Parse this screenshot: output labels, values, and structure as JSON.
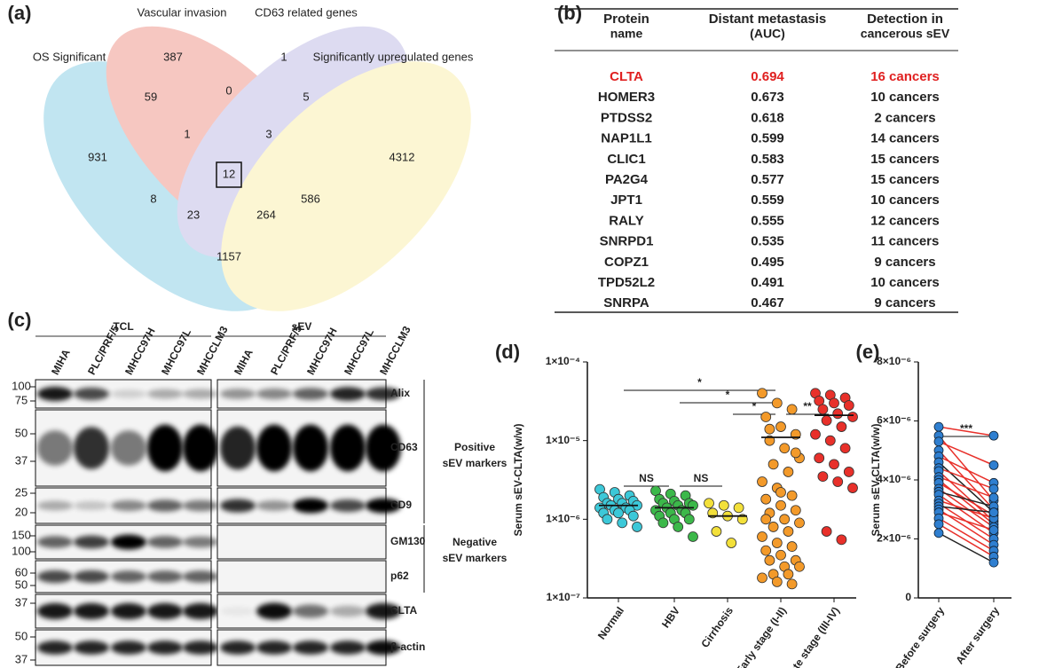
{
  "venn": {
    "panel_label": "(a)",
    "sets": [
      "Vascular invasion",
      "CD63 related genes",
      "OS Significant",
      "Significantly upregulated genes"
    ],
    "counts": [
      "387",
      "1",
      "59",
      "0",
      "5",
      "931",
      "1",
      "3",
      "4312",
      "12",
      "8",
      "23",
      "264",
      "586",
      "1157"
    ]
  },
  "table": {
    "panel_label": "(b)",
    "header": [
      [
        "Protein",
        "name"
      ],
      [
        "Distant metastasis",
        "(AUC)"
      ],
      [
        "Detection in",
        "cancerous sEV"
      ]
    ],
    "rows": [
      [
        "CLTA",
        "0.694",
        "16 cancers"
      ],
      [
        "HOMER3",
        "0.673",
        "10 cancers"
      ],
      [
        "PTDSS2",
        "0.618",
        "2 cancers"
      ],
      [
        "NAP1L1",
        "0.599",
        "14 cancers"
      ],
      [
        "CLIC1",
        "0.583",
        "15 cancers"
      ],
      [
        "PA2G4",
        "0.577",
        "15 cancers"
      ],
      [
        "JPT1",
        "0.559",
        "10 cancers"
      ],
      [
        "RALY",
        "0.555",
        "12 cancers"
      ],
      [
        "SNRPD1",
        "0.535",
        "11 cancers"
      ],
      [
        "COPZ1",
        "0.495",
        "9 cancers"
      ],
      [
        "TPD52L2",
        "0.491",
        "10 cancers"
      ],
      [
        "SNRPA",
        "0.467",
        "9 cancers"
      ]
    ]
  },
  "blot": {
    "panel_label": "(c)",
    "groups": [
      "TCL",
      "sEV"
    ],
    "lanes": [
      "MIHA",
      "PLC/PRF/5",
      "MHCC97H",
      "MHCC97L",
      "MHCCLM3"
    ],
    "rows": [
      {
        "marker": "Alix",
        "mw": [
          "100",
          "75"
        ]
      },
      {
        "marker": "CD63",
        "mw": [
          "50",
          "37"
        ]
      },
      {
        "marker": "CD9",
        "mw": [
          "25",
          "20"
        ]
      },
      {
        "marker": "GM130",
        "mw": [
          "150",
          "100"
        ]
      },
      {
        "marker": "p62",
        "mw": [
          "60",
          "50"
        ]
      },
      {
        "marker": "CLTA",
        "mw": [
          "37"
        ]
      },
      {
        "marker": "β-actin",
        "mw": [
          "50",
          "37"
        ]
      }
    ],
    "classes": [
      [
        "Positive",
        "sEV markers"
      ],
      [
        "Negative",
        "sEV markers"
      ]
    ]
  },
  "chart_data": [
    {
      "type": "scatter",
      "panel_label": "(d)",
      "y_label": "Serum sEV-CLTA(w/w)",
      "log_y": true,
      "categories": [
        "Normal",
        "HBV",
        "Cirrhosis",
        "Early stage (I-II)",
        "Late stage (III-IV)"
      ],
      "colors": [
        "#3cc8d8",
        "#3cb84a",
        "#f3e03a",
        "#f39a2a",
        "#e8302a"
      ],
      "values": [
        [
          2.4e-06,
          2.2e-06,
          2e-06,
          1.9e-06,
          1.8e-06,
          1.7e-06,
          1.6e-06,
          1.6e-06,
          1.5e-06,
          1.5e-06,
          1.4e-06,
          1.4e-06,
          1.3e-06,
          1.3e-06,
          1.2e-06,
          1.2e-06,
          1.1e-06,
          1e-06,
          9e-07,
          8e-07
        ],
        [
          2.3e-06,
          2.1e-06,
          2e-06,
          1.8e-06,
          1.7e-06,
          1.6e-06,
          1.6e-06,
          1.5e-06,
          1.5e-06,
          1.4e-06,
          1.3e-06,
          1.3e-06,
          1.2e-06,
          1.2e-06,
          1.1e-06,
          1e-06,
          1e-06,
          9e-07,
          8e-07,
          6e-07
        ],
        [
          1.6e-06,
          1.5e-06,
          1.4e-06,
          1.2e-06,
          1.1e-06,
          1e-06,
          7e-07,
          5e-07
        ],
        [
          4e-05,
          3e-05,
          2.5e-05,
          2e-05,
          1.5e-05,
          1.2e-05,
          1e-05,
          8e-06,
          6e-06,
          5e-06,
          4e-06,
          3e-06,
          2.5e-06,
          2e-06,
          1.8e-06,
          1.5e-06,
          1.3e-06,
          1.2e-06,
          1e-06,
          9e-07,
          8e-07,
          7e-07,
          6e-07,
          5e-07,
          4.5e-07,
          4e-07,
          3.5e-07,
          3e-07,
          3e-07,
          2.5e-07,
          2.5e-07,
          2e-07,
          2e-07,
          1.8e-07,
          1.6e-07,
          1.5e-07,
          1e-06,
          2.2e-06,
          7e-06,
          1.4e-05
        ],
        [
          4e-05,
          3.8e-05,
          3.5e-05,
          3.2e-05,
          3e-05,
          2.8e-05,
          2.5e-05,
          2.2e-05,
          2e-05,
          1.8e-05,
          1.5e-05,
          1.2e-05,
          1e-05,
          8e-06,
          6e-06,
          5e-06,
          4e-06,
          3.5e-06,
          3e-06,
          2.5e-06,
          7e-07,
          5.5e-07
        ]
      ],
      "means": [
        1.5e-06,
        1.4e-06,
        1.1e-06,
        1.1e-05,
        2.1e-05
      ],
      "ylim": [
        1e-07,
        0.0001
      ],
      "yticks": [
        {
          "value": 1e-07,
          "label": "1×10⁻⁷"
        },
        {
          "value": 1e-06,
          "label": "1×10⁻⁶"
        },
        {
          "value": 1e-05,
          "label": "1×10⁻⁵"
        },
        {
          "value": 0.0001,
          "label": "1×10⁻⁴"
        }
      ],
      "annotations": [
        "*",
        "*",
        "*",
        "**",
        "NS",
        "NS"
      ]
    },
    {
      "type": "line",
      "panel_label": "(e)",
      "y_label": "Serum sEV-CLTA(w/w)",
      "categories": [
        "Before surgery",
        "After surgery"
      ],
      "point_color": "#2f7fd0",
      "before": [
        5.8e-06,
        5.5e-06,
        5.3e-06,
        5e-06,
        4.8e-06,
        4.6e-06,
        4.4e-06,
        4.3e-06,
        4.1e-06,
        4e-06,
        3.9e-06,
        3.7e-06,
        3.6e-06,
        3.5e-06,
        3.3e-06,
        3.2e-06,
        3.1e-06,
        3e-06,
        2.9e-06,
        2.7e-06,
        2.5e-06,
        2.2e-06
      ],
      "after": [
        5.5e-06,
        3.3e-06,
        4.5e-06,
        3e-06,
        3.9e-06,
        2.9e-06,
        3.7e-06,
        2.6e-06,
        3.4e-06,
        2.5e-06,
        2.8e-06,
        2.4e-06,
        3.1e-06,
        2.2e-06,
        2.7e-06,
        2e-06,
        2.9e-06,
        1.8e-06,
        2.3e-06,
        1.6e-06,
        1.4e-06,
        1.2e-06
      ],
      "pair_colors": [
        "#e8302a",
        "#e8302a",
        "#e8302a",
        "#e8302a",
        "#e8302a",
        "#222222",
        "#e8302a",
        "#e8302a",
        "#e8302a",
        "#e8302a",
        "#e8302a",
        "#e8302a",
        "#222222",
        "#e8302a",
        "#e8302a",
        "#e8302a",
        "#222222",
        "#e8302a",
        "#e8302a",
        "#e8302a",
        "#e8302a",
        "#222222"
      ],
      "ylim": [
        0,
        8e-06
      ],
      "yticks": [
        0,
        {
          "value": 2e-06,
          "label": "2×10⁻⁶"
        },
        {
          "value": 4e-06,
          "label": "4×10⁻⁶"
        },
        {
          "value": 6e-06,
          "label": "6×10⁻⁶"
        },
        {
          "value": 8e-06,
          "label": "8×10⁻⁶"
        }
      ],
      "annotations": [
        "***"
      ]
    }
  ]
}
